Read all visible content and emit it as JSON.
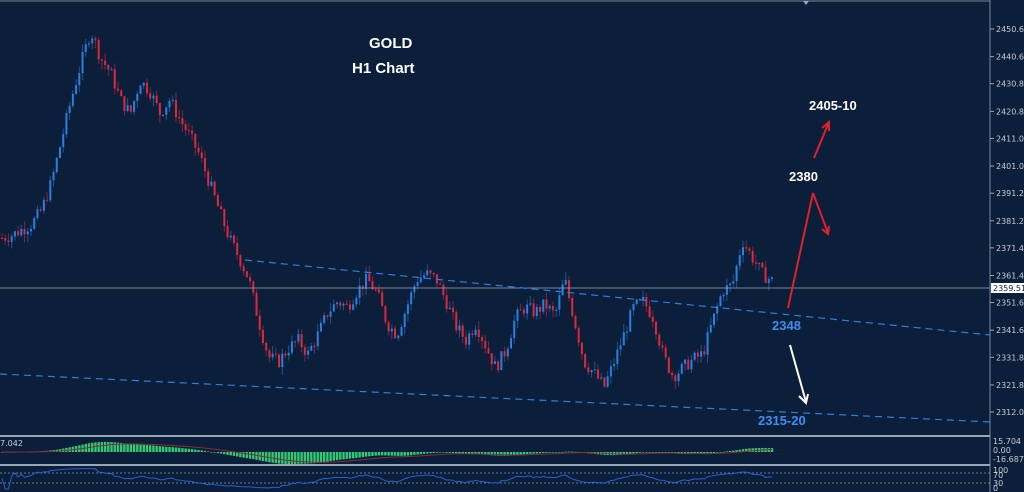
{
  "title": {
    "line1": "GOLD",
    "line2": "H1 Chart"
  },
  "colors": {
    "background": "#0b1f3a",
    "bull": "#2a7fe0",
    "bear": "#e0283a",
    "trendline": "#2a7fe0",
    "annotation_red": "#e0202a",
    "annotation_white": "#ffffff",
    "annotation_blue": "#3d8ff0",
    "macd_hist": "#2ecc71",
    "macd_signal": "#8b2a3a",
    "rsi_line": "#2a5fd0"
  },
  "price_axis": {
    "ticks": [
      "2450.60",
      "2440.60",
      "2430.80",
      "2420.80",
      "2411.00",
      "2401.00",
      "2391.20",
      "2381.20",
      "2371.40",
      "2361.40",
      "2351.60",
      "2341.60",
      "2331.80",
      "2321.80",
      "2312.00"
    ],
    "current_price": "2359.51"
  },
  "annotations": {
    "target_up": "2405-10",
    "resistance": "2380",
    "support": "2348",
    "target_down": "2315-20"
  },
  "macd_panel": {
    "left_value": "7.042",
    "axis": [
      "15.704",
      "0.00",
      "-16.687"
    ]
  },
  "rsi_panel": {
    "axis": [
      "100",
      "70",
      "30",
      "0"
    ]
  },
  "chart_data": {
    "type": "candlestick",
    "title": "GOLD H1 Chart",
    "symbol": "GOLD",
    "timeframe": "H1",
    "ylim": [
      2312.0,
      2455.0
    ],
    "y_ticks": [
      2450.6,
      2440.6,
      2430.8,
      2420.8,
      2411.0,
      2401.0,
      2391.2,
      2381.2,
      2371.4,
      2361.4,
      2351.6,
      2341.6,
      2331.8,
      2321.8,
      2312.0
    ],
    "last_price": 2359.51,
    "close_path_approx": [
      2375,
      2376,
      2378,
      2380,
      2385,
      2395,
      2410,
      2425,
      2438,
      2450,
      2440,
      2435,
      2425,
      2420,
      2432,
      2428,
      2420,
      2425,
      2418,
      2412,
      2405,
      2395,
      2385,
      2375,
      2368,
      2360,
      2345,
      2332,
      2330,
      2335,
      2338,
      2333,
      2340,
      2348,
      2352,
      2350,
      2356,
      2360,
      2355,
      2344,
      2340,
      2350,
      2360,
      2362,
      2360,
      2352,
      2343,
      2338,
      2344,
      2336,
      2328,
      2334,
      2346,
      2350,
      2348,
      2351,
      2347,
      2360,
      2345,
      2330,
      2326,
      2321,
      2330,
      2340,
      2350,
      2352,
      2346,
      2332,
      2325,
      2328,
      2331,
      2333,
      2345,
      2356,
      2358,
      2374,
      2368,
      2362,
      2359.5
    ],
    "trendlines": [
      {
        "name": "upper-channel",
        "from_price": 2370,
        "to_price": 2344,
        "style": "dashed"
      },
      {
        "name": "lower-channel",
        "from_price": 2330,
        "to_price": 2312,
        "style": "dashed"
      }
    ],
    "annotations": [
      {
        "label": "2405-10",
        "type": "target",
        "direction": "up"
      },
      {
        "label": "2380",
        "type": "resistance"
      },
      {
        "label": "2348",
        "type": "support"
      },
      {
        "label": "2315-20",
        "type": "target",
        "direction": "down"
      }
    ],
    "indicators": [
      {
        "name": "MACD",
        "axis": [
          15.704,
          0.0,
          -16.687
        ],
        "value": 7.042
      },
      {
        "name": "RSI",
        "levels": [
          70,
          30
        ],
        "range": [
          0,
          100
        ]
      }
    ]
  }
}
